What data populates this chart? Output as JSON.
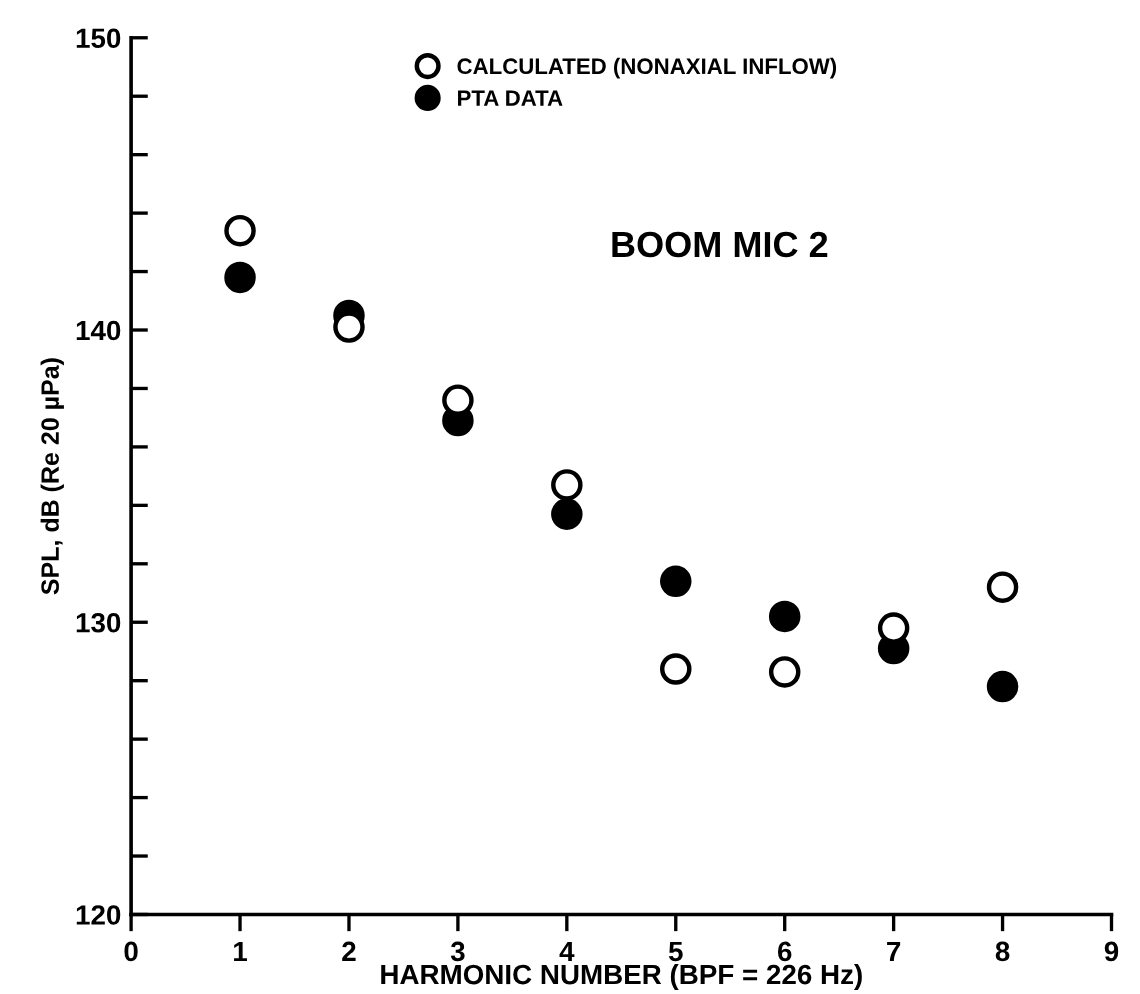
{
  "chart_data": {
    "type": "scatter",
    "xlabel": "HARMONIC NUMBER (BPF = 226 Hz)",
    "ylabel": "SPL, dB (Re 20 µPa)",
    "annotations": [
      "BOOM MIC 2"
    ],
    "xlim": [
      0,
      9
    ],
    "xticks": [
      0,
      1,
      2,
      3,
      4,
      5,
      6,
      7,
      8,
      9
    ],
    "ylim": [
      120,
      150
    ],
    "yticks": [
      120,
      {
        "value": 122,
        "label": null
      },
      {
        "value": 124,
        "label": null
      },
      {
        "value": 126,
        "label": null
      },
      {
        "value": 128,
        "label": null
      },
      130,
      {
        "value": 132,
        "label": null
      },
      {
        "value": 134,
        "label": null
      },
      {
        "value": 136,
        "label": null
      },
      {
        "value": 138,
        "label": null
      },
      140,
      {
        "value": 142,
        "label": null
      },
      {
        "value": 144,
        "label": null
      },
      {
        "value": 146,
        "label": null
      },
      {
        "value": 148,
        "label": null
      },
      150
    ],
    "x": [
      1,
      2,
      3,
      4,
      5,
      6,
      7,
      8
    ],
    "marker": "circle",
    "legend": "top",
    "grid": false,
    "series": [
      {
        "name": "CALCULATED (NONAXIAL INFLOW)",
        "color": "#ffffff",
        "values": [
          143.4,
          140.1,
          137.6,
          134.7,
          128.4,
          128.3,
          129.8,
          131.2
        ]
      },
      {
        "name": "PTA DATA",
        "color": "#000000",
        "values": [
          141.8,
          140.5,
          136.9,
          133.7,
          131.4,
          130.2,
          129.1,
          127.8
        ]
      }
    ]
  }
}
